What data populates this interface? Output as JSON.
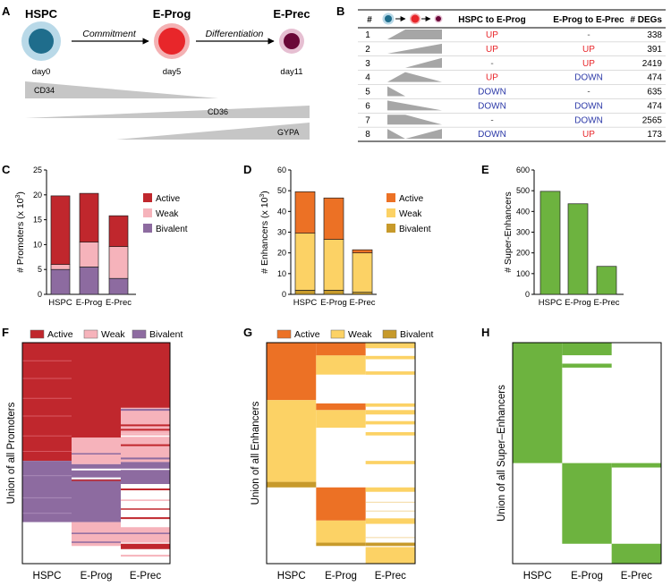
{
  "panels": {
    "a": "A",
    "b": "B",
    "c": "C",
    "d": "D",
    "e": "E",
    "f": "F",
    "g": "G",
    "h": "H"
  },
  "colors": {
    "hspc": "#1f6d8c",
    "eprog": "#e8262a",
    "eprec": "#6a0838",
    "active": "#c0272d",
    "weak": "#f6b3bb",
    "bivalent": "#8d6ba0",
    "enh_active": "#ec7125",
    "enh_weak": "#fcd265",
    "enh_bivalent": "#c79a2b",
    "super": "#6db33f",
    "up": "#e8262a",
    "down": "#2d3aa8"
  },
  "panel_a": {
    "stages": [
      {
        "name": "HSPC",
        "day": "day0"
      },
      {
        "name": "E-Prog",
        "day": "day5"
      },
      {
        "name": "E-Prec",
        "day": "day11"
      }
    ],
    "arrows": [
      "Commitment",
      "Differentiation"
    ],
    "markers": [
      "CD34",
      "CD36",
      "GYPA"
    ]
  },
  "panel_b": {
    "headers": [
      "#",
      "HSPC to E-Prog",
      "E-Prog to E-Prec",
      "# DEGs"
    ],
    "rows": [
      {
        "n": "1",
        "a": "UP",
        "b": "-",
        "degs": "338"
      },
      {
        "n": "2",
        "a": "UP",
        "b": "UP",
        "degs": "391"
      },
      {
        "n": "3",
        "a": "-",
        "b": "UP",
        "degs": "2419"
      },
      {
        "n": "4",
        "a": "UP",
        "b": "DOWN",
        "degs": "474"
      },
      {
        "n": "5",
        "a": "DOWN",
        "b": "-",
        "degs": "635"
      },
      {
        "n": "6",
        "a": "DOWN",
        "b": "DOWN",
        "degs": "474"
      },
      {
        "n": "7",
        "a": "-",
        "b": "DOWN",
        "degs": "2565"
      },
      {
        "n": "8",
        "a": "DOWN",
        "b": "UP",
        "degs": "173"
      }
    ]
  },
  "chart_data": [
    {
      "type": "bar",
      "stacked": true,
      "categories": [
        "HSPC",
        "E-Prog",
        "E-Prec"
      ],
      "series": [
        {
          "name": "Bivalent",
          "values": [
            5,
            5.5,
            3.2
          ]
        },
        {
          "name": "Weak",
          "values": [
            1,
            5,
            6.4
          ]
        },
        {
          "name": "Active",
          "values": [
            13.8,
            9.8,
            6.2
          ]
        }
      ],
      "legend": [
        "Active",
        "Weak",
        "Bivalent"
      ],
      "ylabel": "# Promoters (x 10",
      "ylabel_sup": "3",
      "ylim": [
        0,
        25
      ],
      "yticks": [
        "0",
        "5",
        "10",
        "15",
        "20",
        "25"
      ]
    },
    {
      "type": "bar",
      "stacked": true,
      "categories": [
        "HSPC",
        "E-Prog",
        "E-Prec"
      ],
      "series": [
        {
          "name": "Bivalent",
          "values": [
            2,
            2,
            1
          ]
        },
        {
          "name": "Weak",
          "values": [
            27.5,
            24.5,
            19
          ]
        },
        {
          "name": "Active",
          "values": [
            20,
            20,
            1.5
          ]
        }
      ],
      "legend": [
        "Active",
        "Weak",
        "Bivalent"
      ],
      "ylabel": "# Enhancers (x 10",
      "ylabel_sup": "3",
      "ylim": [
        0,
        60
      ],
      "yticks": [
        "0",
        "10",
        "20",
        "30",
        "40",
        "50",
        "60"
      ]
    },
    {
      "type": "bar",
      "stacked": false,
      "categories": [
        "HSPC",
        "E-Prog",
        "E-Prec"
      ],
      "series": [
        {
          "name": "Super-Enhancers",
          "values": [
            497,
            437,
            135
          ]
        }
      ],
      "ylabel": "# Super-Enhancers",
      "ylim": [
        0,
        600
      ],
      "yticks": [
        "0",
        "100",
        "200",
        "300",
        "400",
        "500",
        "600"
      ]
    },
    {
      "type": "heatmap",
      "ylabel": "Union of all Promoters",
      "columns": [
        "HSPC",
        "E-Prog",
        "E-Prec"
      ],
      "legend": [
        "Active",
        "Weak",
        "Bivalent"
      ]
    },
    {
      "type": "heatmap",
      "ylabel": "Union of all Enhancers",
      "columns": [
        "HSPC",
        "E-Prog",
        "E-Prec"
      ],
      "legend": [
        "Active",
        "Weak",
        "Bivalent"
      ]
    },
    {
      "type": "heatmap",
      "ylabel": "Union of all Super–Enhancers",
      "columns": [
        "HSPC",
        "E-Prog",
        "E-Prec"
      ]
    }
  ]
}
